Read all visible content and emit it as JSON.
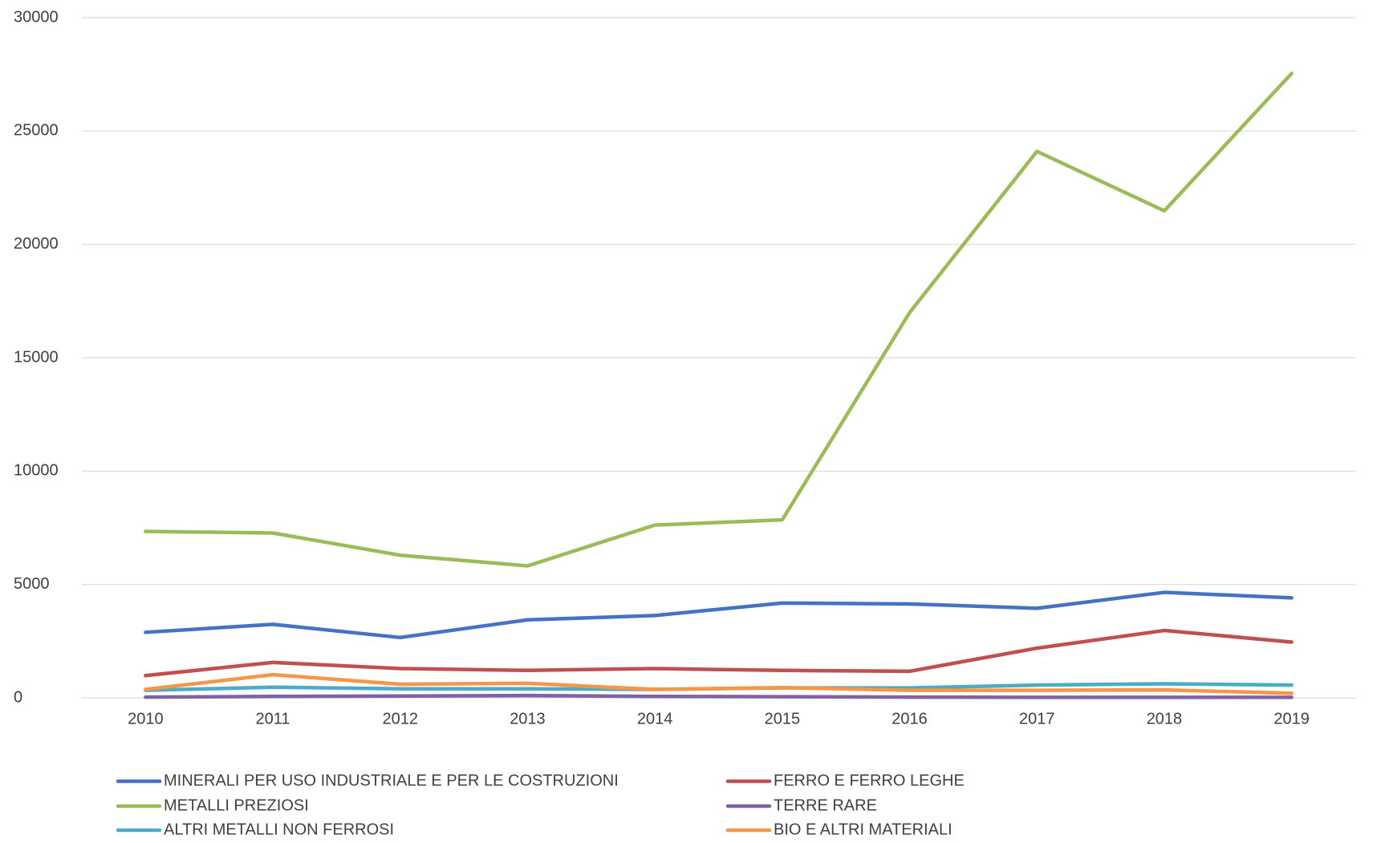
{
  "chart_data": {
    "type": "line",
    "categories": [
      "2010",
      "2011",
      "2012",
      "2013",
      "2014",
      "2015",
      "2016",
      "2017",
      "2018",
      "2019"
    ],
    "series": [
      {
        "name": "MINERALI PER USO INDUSTRIALE E PER LE COSTRUZIONI",
        "color": "#4472c4",
        "values": [
          2890,
          3240,
          2660,
          3440,
          3630,
          4180,
          4140,
          3950,
          4650,
          4410
        ]
      },
      {
        "name": "FERRO E FERRO LEGHE",
        "color": "#c0504d",
        "values": [
          980,
          1560,
          1290,
          1210,
          1290,
          1210,
          1170,
          2190,
          2970,
          2460
        ]
      },
      {
        "name": "METALLI PREZIOSI",
        "color": "#9bbb59",
        "values": [
          7340,
          7270,
          6290,
          5820,
          7620,
          7850,
          16990,
          24100,
          21480,
          27540
        ]
      },
      {
        "name": "TERRE RARE",
        "color": "#8064a2",
        "values": [
          30,
          60,
          80,
          100,
          60,
          50,
          30,
          20,
          20,
          20
        ]
      },
      {
        "name": "ALTRI METALLI NON FERROSI",
        "color": "#4bacc6",
        "values": [
          330,
          470,
          400,
          400,
          370,
          440,
          440,
          560,
          620,
          560
        ]
      },
      {
        "name": "BIO E ALTRI MATERIALI",
        "color": "#f79646",
        "values": [
          370,
          1020,
          600,
          640,
          370,
          450,
          330,
          330,
          350,
          200
        ]
      }
    ],
    "ylim": [
      0,
      30000
    ],
    "yticks": [
      0,
      5000,
      10000,
      15000,
      20000,
      25000,
      30000
    ],
    "grid": true
  }
}
